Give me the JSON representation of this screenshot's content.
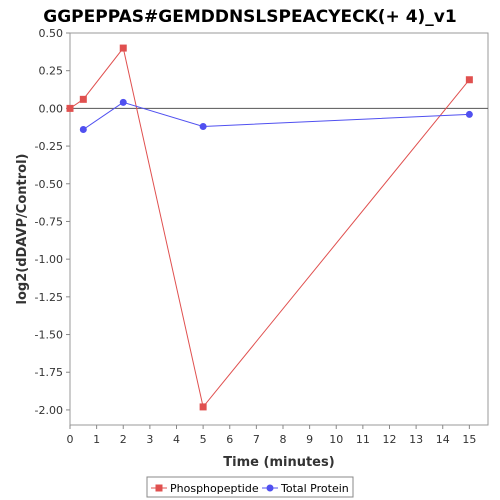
{
  "chart_data": {
    "type": "line",
    "title": "GGPEPPAS#GEMDDNSLSPEACYECK(+ 4)_v1",
    "xlabel": "Time (minutes)",
    "ylabel": "log2(dDAVP/Control)",
    "xlim": [
      0,
      15.7
    ],
    "ylim": [
      -2.1,
      0.5
    ],
    "xticks": [
      "0",
      "1",
      "2",
      "3",
      "4",
      "5",
      "6",
      "7",
      "8",
      "9",
      "10",
      "11",
      "12",
      "13",
      "14",
      "15"
    ],
    "yticks": [
      "0.50",
      "0.25",
      "0.00",
      "-0.25",
      "-0.50",
      "-0.75",
      "-1.00",
      "-1.25",
      "-1.50",
      "-1.75",
      "-2.00"
    ],
    "reference_line_y": 0,
    "grid": false,
    "legend_position": "bottom",
    "series": [
      {
        "name": "Phosphopeptide",
        "color": "#e0504f",
        "marker": "square",
        "x": [
          0,
          0.5,
          2,
          5,
          15
        ],
        "y": [
          0.0,
          0.06,
          0.4,
          -1.98,
          0.19
        ]
      },
      {
        "name": "Total Protein",
        "color": "#5050f0",
        "marker": "circle",
        "x": [
          0.5,
          2,
          5,
          15
        ],
        "y": [
          -0.14,
          0.04,
          -0.12,
          -0.04
        ]
      }
    ]
  }
}
